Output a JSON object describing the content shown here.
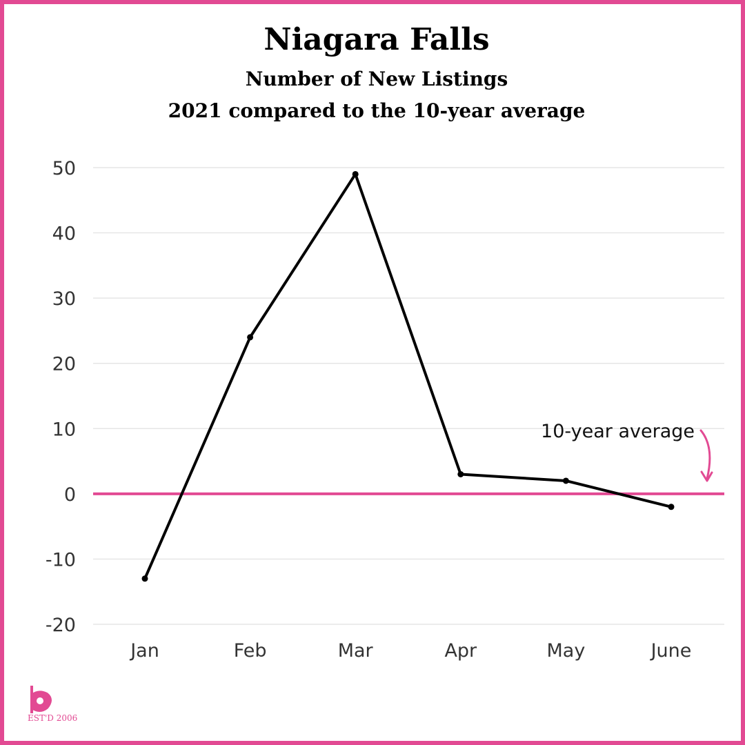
{
  "title": "Niagara Falls",
  "subtitle1": "Number of New Listings",
  "subtitle2": "2021 compared to the 10-year average",
  "annotation": "10-year average",
  "logo_text": "EST'D 2006",
  "colors": {
    "accent": "#e24a93",
    "line": "#000000",
    "grid": "#e0e0e0"
  },
  "chart_data": {
    "type": "line",
    "categories": [
      "Jan",
      "Feb",
      "Mar",
      "Apr",
      "May",
      "June"
    ],
    "series": [
      {
        "values": [
          -13,
          24,
          49,
          3,
          2,
          -2
        ]
      }
    ],
    "reference_line": {
      "label": "10-year average",
      "value": 0
    },
    "yticks": [
      "50",
      "40",
      "30",
      "20",
      "10",
      "0",
      "-10",
      "-20"
    ],
    "ylim": [
      -20,
      50
    ],
    "grid": true
  }
}
